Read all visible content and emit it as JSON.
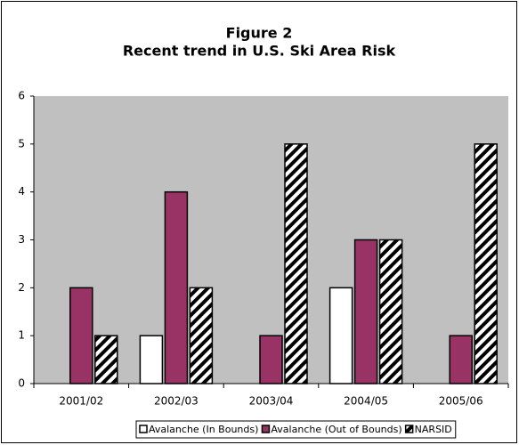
{
  "chart_data": {
    "type": "bar",
    "title": "Figure 2",
    "subtitle": "Recent trend in U.S. Ski Area Risk",
    "categories": [
      "2001/02",
      "2002/03",
      "2003/04",
      "2004/05",
      "2005/06"
    ],
    "series": [
      {
        "name": "Avalanche (In Bounds)",
        "color": "#ffffff",
        "values": [
          0,
          1,
          0,
          2,
          0
        ]
      },
      {
        "name": "Avalanche (Out of Bounds)",
        "color": "#993366",
        "values": [
          2,
          4,
          1,
          3,
          1
        ]
      },
      {
        "name": "NARSID",
        "color": "#ffffff",
        "pattern": "diagonal",
        "values": [
          1,
          2,
          5,
          3,
          5
        ]
      }
    ],
    "ylim": [
      0,
      6
    ],
    "yticks": [
      0,
      1,
      2,
      3,
      4,
      5,
      6
    ],
    "grid": false,
    "plot_background": "#c0c0c0",
    "legend": "bottom"
  }
}
